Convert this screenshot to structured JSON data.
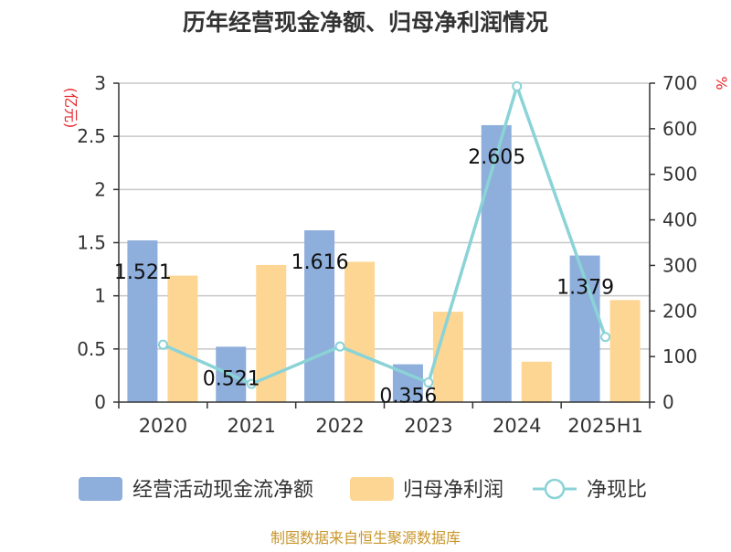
{
  "chart_data": {
    "type": "bar",
    "title": "历年经营现金净额、归母净利润情况",
    "categories": [
      "2020",
      "2021",
      "2022",
      "2023",
      "2024",
      "2025H1"
    ],
    "series": [
      {
        "name": "经营活动现金流净额",
        "type": "bar",
        "axis": "left",
        "values": [
          1.521,
          0.521,
          1.616,
          0.356,
          2.605,
          1.379
        ],
        "color": "#8eaedb"
      },
      {
        "name": "归母净利润",
        "type": "bar",
        "axis": "left",
        "values": [
          1.19,
          1.29,
          1.32,
          0.85,
          0.38,
          0.96
        ],
        "color": "#fed694"
      },
      {
        "name": "净现比",
        "type": "line",
        "axis": "right",
        "values": [
          126,
          40,
          122,
          43,
          693,
          143
        ],
        "color": "#8ad3d7"
      }
    ],
    "data_labels": [
      "1.521",
      "0.521",
      "1.616",
      "0.356",
      "2.605",
      "1.379"
    ],
    "yleft": {
      "label": "(亿元)",
      "ylim": [
        0,
        3
      ],
      "ticks": [
        "0",
        "0.5",
        "1",
        "1.5",
        "2",
        "2.5",
        "3"
      ]
    },
    "yright": {
      "label": "%",
      "ylim": [
        0,
        700
      ],
      "ticks": [
        "0",
        "100",
        "200",
        "300",
        "400",
        "500",
        "600",
        "700"
      ]
    },
    "grid": true,
    "legend_position": "bottom",
    "source": "制图数据来自恒生聚源数据库"
  }
}
